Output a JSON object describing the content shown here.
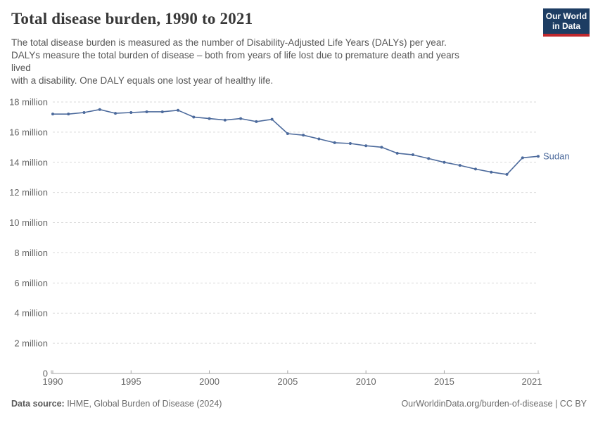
{
  "header": {
    "title": "Total disease burden, 1990 to 2021",
    "subtitle_lines": [
      "The total disease burden is measured as the number of Disability-Adjusted Life Years (DALYs) per year.",
      "DALYs measure the total burden of disease – both from years of life lost due to premature death and years",
      "lived",
      "with a disability. One DALY equals one lost year of healthy life."
    ],
    "logo": {
      "line1": "Our World",
      "line2": "in Data"
    }
  },
  "chart_data": {
    "type": "line",
    "title": "Total disease burden, 1990 to 2021",
    "unit": "DALYs (millions) per year",
    "xlim": [
      1990,
      2021
    ],
    "ylim_millions": [
      0,
      18
    ],
    "grid": "dashed horizontal gridlines every 2 million",
    "legend_position": "end-of-line label",
    "x_tick_years": [
      1990,
      1995,
      2000,
      2005,
      2010,
      2015,
      2021
    ],
    "y_tick_millions": [
      0,
      2,
      4,
      6,
      8,
      10,
      12,
      14,
      16,
      18
    ],
    "y_tick_suffix": " million",
    "years": [
      1990,
      1991,
      1992,
      1993,
      1994,
      1995,
      1996,
      1997,
      1998,
      1999,
      2000,
      2001,
      2002,
      2003,
      2004,
      2005,
      2006,
      2007,
      2008,
      2009,
      2010,
      2011,
      2012,
      2013,
      2014,
      2015,
      2016,
      2017,
      2018,
      2019,
      2020,
      2021
    ],
    "series": [
      {
        "name": "Sudan",
        "values_millions": [
          17.2,
          17.2,
          17.3,
          17.5,
          17.25,
          17.3,
          17.35,
          17.35,
          17.45,
          17.0,
          16.9,
          16.8,
          16.9,
          16.7,
          16.85,
          15.9,
          15.8,
          15.55,
          15.3,
          15.25,
          15.1,
          15.0,
          14.6,
          14.5,
          14.25,
          14.0,
          13.8,
          13.55,
          13.35,
          13.2,
          14.3,
          14.4
        ]
      }
    ]
  },
  "footer": {
    "source_label": "Data source:",
    "source_text": " IHME, Global Burden of Disease (2024)",
    "right_text": "OurWorldinData.org/burden-of-disease | CC BY"
  },
  "colors": {
    "line": "#4C6A9C",
    "grid": "#d9d9d9",
    "axis": "#a5a5a5",
    "tick_text": "#666666",
    "title_text": "#383838",
    "logo_bg": "#1d3d63",
    "logo_stripe": "#c0282d"
  }
}
